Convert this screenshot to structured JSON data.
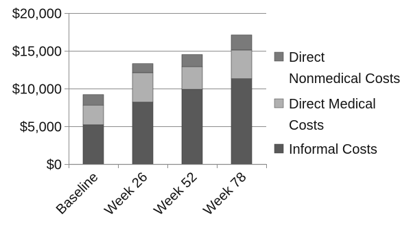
{
  "chart_data": {
    "type": "bar",
    "stacked": true,
    "title": "",
    "xlabel": "",
    "ylabel": "",
    "categories": [
      "Baseline",
      "Week 26",
      "Week 52",
      "Week 78"
    ],
    "series": [
      {
        "name": "Informal Costs",
        "color": "#595959",
        "values": [
          5200,
          8200,
          9900,
          11300
        ]
      },
      {
        "name": "Direct Medical Costs",
        "color": "#b0b0b0",
        "values": [
          2600,
          3900,
          3000,
          3800
        ]
      },
      {
        "name": "Direct Nonmedical Costs",
        "color": "#7a7a7a",
        "values": [
          1400,
          1200,
          1600,
          2000
        ]
      }
    ],
    "ylim": [
      0,
      20000
    ],
    "yticks": [
      0,
      5000,
      10000,
      15000,
      20000
    ],
    "ytick_labels": [
      "$0",
      "$5,000",
      "$10,000",
      "$15,000",
      "$20,000"
    ],
    "grid": "horizontal",
    "legend_position": "right",
    "legend_order": [
      "Direct Nonmedical Costs",
      "Direct Medical Costs",
      "Informal Costs"
    ],
    "legend_lines": [
      [
        "Direct",
        "Nonmedical Costs"
      ],
      [
        "Direct Medical",
        "Costs"
      ],
      [
        "Informal Costs"
      ]
    ]
  }
}
